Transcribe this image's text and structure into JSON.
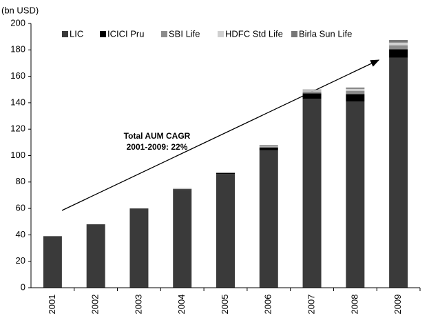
{
  "chart_data": {
    "type": "stacked_bar",
    "y_axis_label": "(bn USD)",
    "annotations": [
      "Total AUM CAGR",
      "2001-2009: 22%"
    ],
    "categories": [
      "2001",
      "2002",
      "2003",
      "2004",
      "2005",
      "2006",
      "2007",
      "2008",
      "2009"
    ],
    "series": [
      {
        "name": "LIC",
        "color": "#3a3a3a",
        "values": [
          39,
          48,
          60,
          74,
          86,
          104,
          143,
          141,
          174
        ]
      },
      {
        "name": "ICICI Pru",
        "color": "#000000",
        "values": [
          0,
          0,
          0,
          0.5,
          0.7,
          2,
          4,
          5.5,
          6.5
        ]
      },
      {
        "name": "SBI Life",
        "color": "#8c8c8c",
        "values": [
          0,
          0,
          0,
          0.3,
          0.3,
          0.8,
          1.5,
          2.5,
          3
        ]
      },
      {
        "name": "HDFC Std Life",
        "color": "#d0d0d0",
        "values": [
          0,
          0,
          0,
          0.3,
          0.3,
          0.6,
          1,
          1.5,
          2
        ]
      },
      {
        "name": "Birla Sun Life",
        "color": "#777777",
        "values": [
          0,
          0,
          0,
          0.2,
          0.2,
          0.6,
          0.5,
          1,
          2
        ]
      }
    ],
    "ylim": [
      0,
      200
    ],
    "yticks": [
      0,
      20,
      40,
      60,
      80,
      100,
      120,
      140,
      160,
      180,
      200
    ],
    "legend": "top",
    "grid": false
  }
}
